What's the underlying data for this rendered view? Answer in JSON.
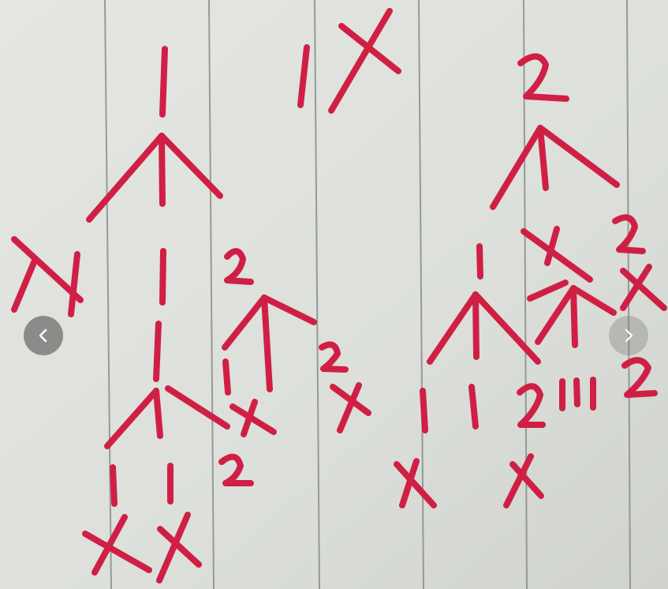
{
  "photo": {
    "paper_color": "#dfe2dd",
    "rule_color": "#8a8d8a",
    "ink_color": "#d01f45",
    "handwritten_symbols": [
      "1",
      "X",
      "2"
    ]
  },
  "carousel": {
    "prev_icon": "chevron-left-icon",
    "next_icon": "chevron-right-icon"
  }
}
